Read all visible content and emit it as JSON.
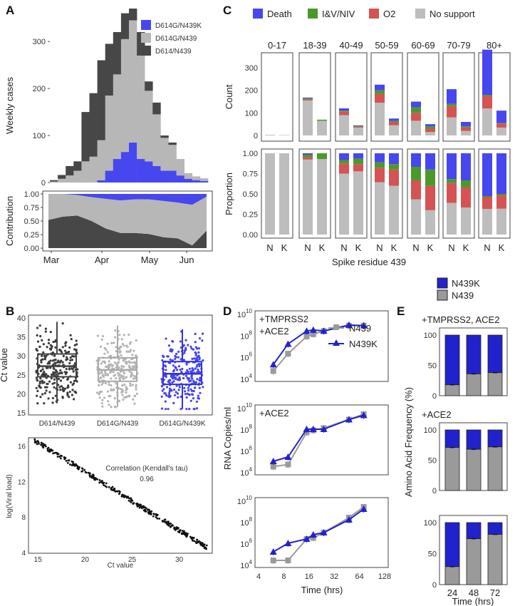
{
  "colors": {
    "blue": "#4747f0",
    "lightgray": "#b7b7b7",
    "darkgray": "#474747",
    "green": "#4a9a2a",
    "red": "#d55353",
    "support": "#bdbdbd",
    "n439": "#9a9a9a",
    "n439k": "#2222cc"
  },
  "panel_labels": {
    "a": "A",
    "b": "B",
    "c": "C",
    "d": "D",
    "e": "E"
  },
  "chart_data": [
    {
      "id": "A-top",
      "type": "area",
      "ylabel": "Weekly cases",
      "yticks": [
        "0",
        "100",
        "200",
        "300"
      ],
      "ylim": [
        0,
        370
      ],
      "legend": [
        "D614G/N439K",
        "D614G/N439",
        "D614/N439"
      ],
      "series": [
        {
          "name": "D614G/N439K",
          "values": [
            0,
            0,
            0,
            0,
            0,
            0,
            5,
            25,
            50,
            65,
            85,
            50,
            45,
            35,
            25,
            25,
            15,
            8,
            5,
            3
          ]
        },
        {
          "name": "D614G/N439",
          "values": [
            2,
            8,
            15,
            25,
            45,
            55,
            85,
            160,
            180,
            240,
            260,
            220,
            150,
            110,
            70,
            55,
            35,
            12,
            8,
            6
          ]
        },
        {
          "name": "D614/N439",
          "values": [
            3,
            8,
            20,
            20,
            105,
            135,
            170,
            110,
            90,
            55,
            25,
            50,
            20,
            25,
            5,
            5,
            0,
            0,
            0,
            0
          ]
        }
      ]
    },
    {
      "id": "A-bottom",
      "type": "area",
      "ylabel": "Contribution",
      "yticks": [
        "0.00",
        "0.25",
        "0.50",
        "0.75",
        "1.00"
      ],
      "ylim": [
        0,
        1
      ],
      "xticks": [
        "Mar",
        "Apr",
        "May",
        "Jun"
      ],
      "series": [
        {
          "name": "D614G/N439K",
          "values": [
            0,
            0,
            0.02,
            0.06,
            0.09,
            0.12,
            0.1,
            0.1,
            0.13,
            0.16,
            0.2,
            0.05
          ]
        },
        {
          "name": "D614G/N439",
          "values": [
            0.48,
            0.42,
            0.38,
            0.44,
            0.55,
            0.6,
            0.62,
            0.64,
            0.67,
            0.66,
            0.75,
            0.63
          ]
        },
        {
          "name": "D614/N439",
          "values": [
            0.52,
            0.58,
            0.6,
            0.5,
            0.36,
            0.28,
            0.28,
            0.26,
            0.2,
            0.18,
            0.05,
            0.32
          ]
        }
      ]
    },
    {
      "id": "B-top",
      "type": "box",
      "ylabel": "Ct value",
      "yticks": [
        "15",
        "20",
        "25",
        "30",
        "35",
        "40"
      ],
      "ylim": [
        15,
        40
      ],
      "groups": [
        {
          "name": "D614/N439",
          "q1": 24.5,
          "median": 27.3,
          "q3": 30.5,
          "lo": 17.5,
          "hi": 39
        },
        {
          "name": "D614G/N439",
          "q1": 23.3,
          "median": 26.3,
          "q3": 29.5,
          "lo": 16.5,
          "hi": 38
        },
        {
          "name": "D614G/N439K",
          "q1": 22.5,
          "median": 25.3,
          "q3": 28.5,
          "lo": 16,
          "hi": 37
        }
      ]
    },
    {
      "id": "B-bottom",
      "type": "scatter",
      "xlabel": "Ct value",
      "ylabel": "log(Viral load)",
      "xticks": [
        "15",
        "20",
        "25",
        "30"
      ],
      "yticks": [
        "4",
        "8",
        "12",
        "16"
      ],
      "xlim": [
        14,
        33.5
      ],
      "ylim": [
        4,
        17
      ],
      "annotation": "Correlation (Kendall's tau)",
      "annotation_value": "0.96",
      "line": {
        "x0": 14.5,
        "y0": 16.8,
        "x1": 33,
        "y1": 4.6
      }
    },
    {
      "id": "C-top",
      "type": "bar",
      "ylabel": "Count",
      "yticks": [
        "0",
        "100",
        "200",
        "300"
      ],
      "ylim": [
        0,
        360
      ],
      "legend": [
        "Death",
        "I&V/NIV",
        "O2",
        "No support"
      ],
      "age_groups": [
        "0-17",
        "18-39",
        "40-49",
        "50-59",
        "60-69",
        "70-79",
        "80+"
      ],
      "N": [
        {
          "death": 0,
          "iv": 0,
          "o2": 0,
          "none": 3
        },
        {
          "death": 3,
          "iv": 5,
          "o2": 5,
          "none": 155
        },
        {
          "death": 10,
          "iv": 5,
          "o2": 15,
          "none": 90
        },
        {
          "death": 25,
          "iv": 15,
          "o2": 40,
          "none": 145
        },
        {
          "death": 25,
          "iv": 25,
          "o2": 35,
          "none": 65
        },
        {
          "death": 65,
          "iv": 10,
          "o2": 50,
          "none": 80
        },
        {
          "death": 200,
          "iv": 5,
          "o2": 55,
          "none": 120
        }
      ],
      "K": [
        {
          "death": 0,
          "iv": 0,
          "o2": 0,
          "none": 2
        },
        {
          "death": 0,
          "iv": 5,
          "o2": 0,
          "none": 65
        },
        {
          "death": 3,
          "iv": 3,
          "o2": 4,
          "none": 35
        },
        {
          "death": 10,
          "iv": 5,
          "o2": 15,
          "none": 45
        },
        {
          "death": 10,
          "iv": 10,
          "o2": 15,
          "none": 15
        },
        {
          "death": 20,
          "iv": 5,
          "o2": 15,
          "none": 20
        },
        {
          "death": 55,
          "iv": 2,
          "o2": 18,
          "none": 35
        }
      ]
    },
    {
      "id": "C-bottom",
      "type": "bar",
      "ylabel": "Proportion",
      "xlabel": "Spike residue 439",
      "yticks": [
        "0.00",
        "0.25",
        "0.50",
        "0.75",
        "1.00"
      ],
      "ylim": [
        0,
        1
      ],
      "xticks": [
        "N",
        "K"
      ]
    },
    {
      "id": "D",
      "type": "line",
      "xlabel": "Time (hrs)",
      "ylabel": "RNA Copies/ml",
      "xticks": [
        "4",
        "8",
        "16",
        "32",
        "64",
        "128"
      ],
      "yticks": [
        "10^4",
        "10^6",
        "10^8",
        "10^10"
      ],
      "legend": [
        "N439",
        "N439K"
      ],
      "panels": [
        {
          "label": "+TMPRSS2\n+ACE2",
          "N439": [
            [
              6,
              4.7
            ],
            [
              9,
              6.3
            ],
            [
              15,
              7.9
            ],
            [
              18,
              8.1
            ],
            [
              24,
              8.4
            ],
            [
              48,
              8.9
            ],
            [
              72,
              8.9
            ]
          ],
          "N439K": [
            [
              6,
              5.3
            ],
            [
              9,
              7.2
            ],
            [
              15,
              8.4
            ],
            [
              18,
              8.5
            ],
            [
              24,
              8.4
            ],
            [
              48,
              8.95
            ],
            [
              72,
              8.9
            ]
          ]
        },
        {
          "label": "+ACE2",
          "N439": [
            [
              6,
              4.5
            ],
            [
              9,
              4.7
            ],
            [
              15,
              7.7
            ],
            [
              18,
              7.9
            ],
            [
              24,
              8.1
            ],
            [
              48,
              8.9
            ],
            [
              72,
              9.4
            ]
          ],
          "N439K": [
            [
              6,
              5.0
            ],
            [
              9,
              5.4
            ],
            [
              15,
              8.0
            ],
            [
              18,
              8.0
            ],
            [
              24,
              8.0
            ],
            [
              48,
              8.9
            ],
            [
              72,
              9.3
            ]
          ]
        },
        {
          "label": "",
          "N439": [
            [
              6,
              4.4
            ],
            [
              9,
              4.4
            ],
            [
              15,
              6.4
            ],
            [
              18,
              6.5
            ],
            [
              24,
              7.0
            ],
            [
              48,
              8.4
            ],
            [
              72,
              9.4
            ]
          ],
          "N439K": [
            [
              6,
              5.2
            ],
            [
              9,
              6.0
            ],
            [
              15,
              6.4
            ],
            [
              18,
              6.8
            ],
            [
              24,
              7.0
            ],
            [
              48,
              8.2
            ],
            [
              72,
              9.2
            ]
          ]
        }
      ]
    },
    {
      "id": "E",
      "type": "bar",
      "ylabel": "Amino Acid Frequency (%)",
      "xlabel": "Time (hrs)",
      "xticks": [
        "24",
        "48",
        "72"
      ],
      "yticks": [
        "0",
        "50",
        "100"
      ],
      "legend": [
        "N439K",
        "N439"
      ],
      "panels": [
        {
          "label": "+TMPRSS2, ACE2",
          "N439": [
            18,
            36,
            38
          ]
        },
        {
          "label": "+ACE2",
          "N439": [
            71,
            68,
            72
          ]
        },
        {
          "label": "",
          "N439": [
            29,
            74,
            81
          ]
        }
      ]
    }
  ]
}
